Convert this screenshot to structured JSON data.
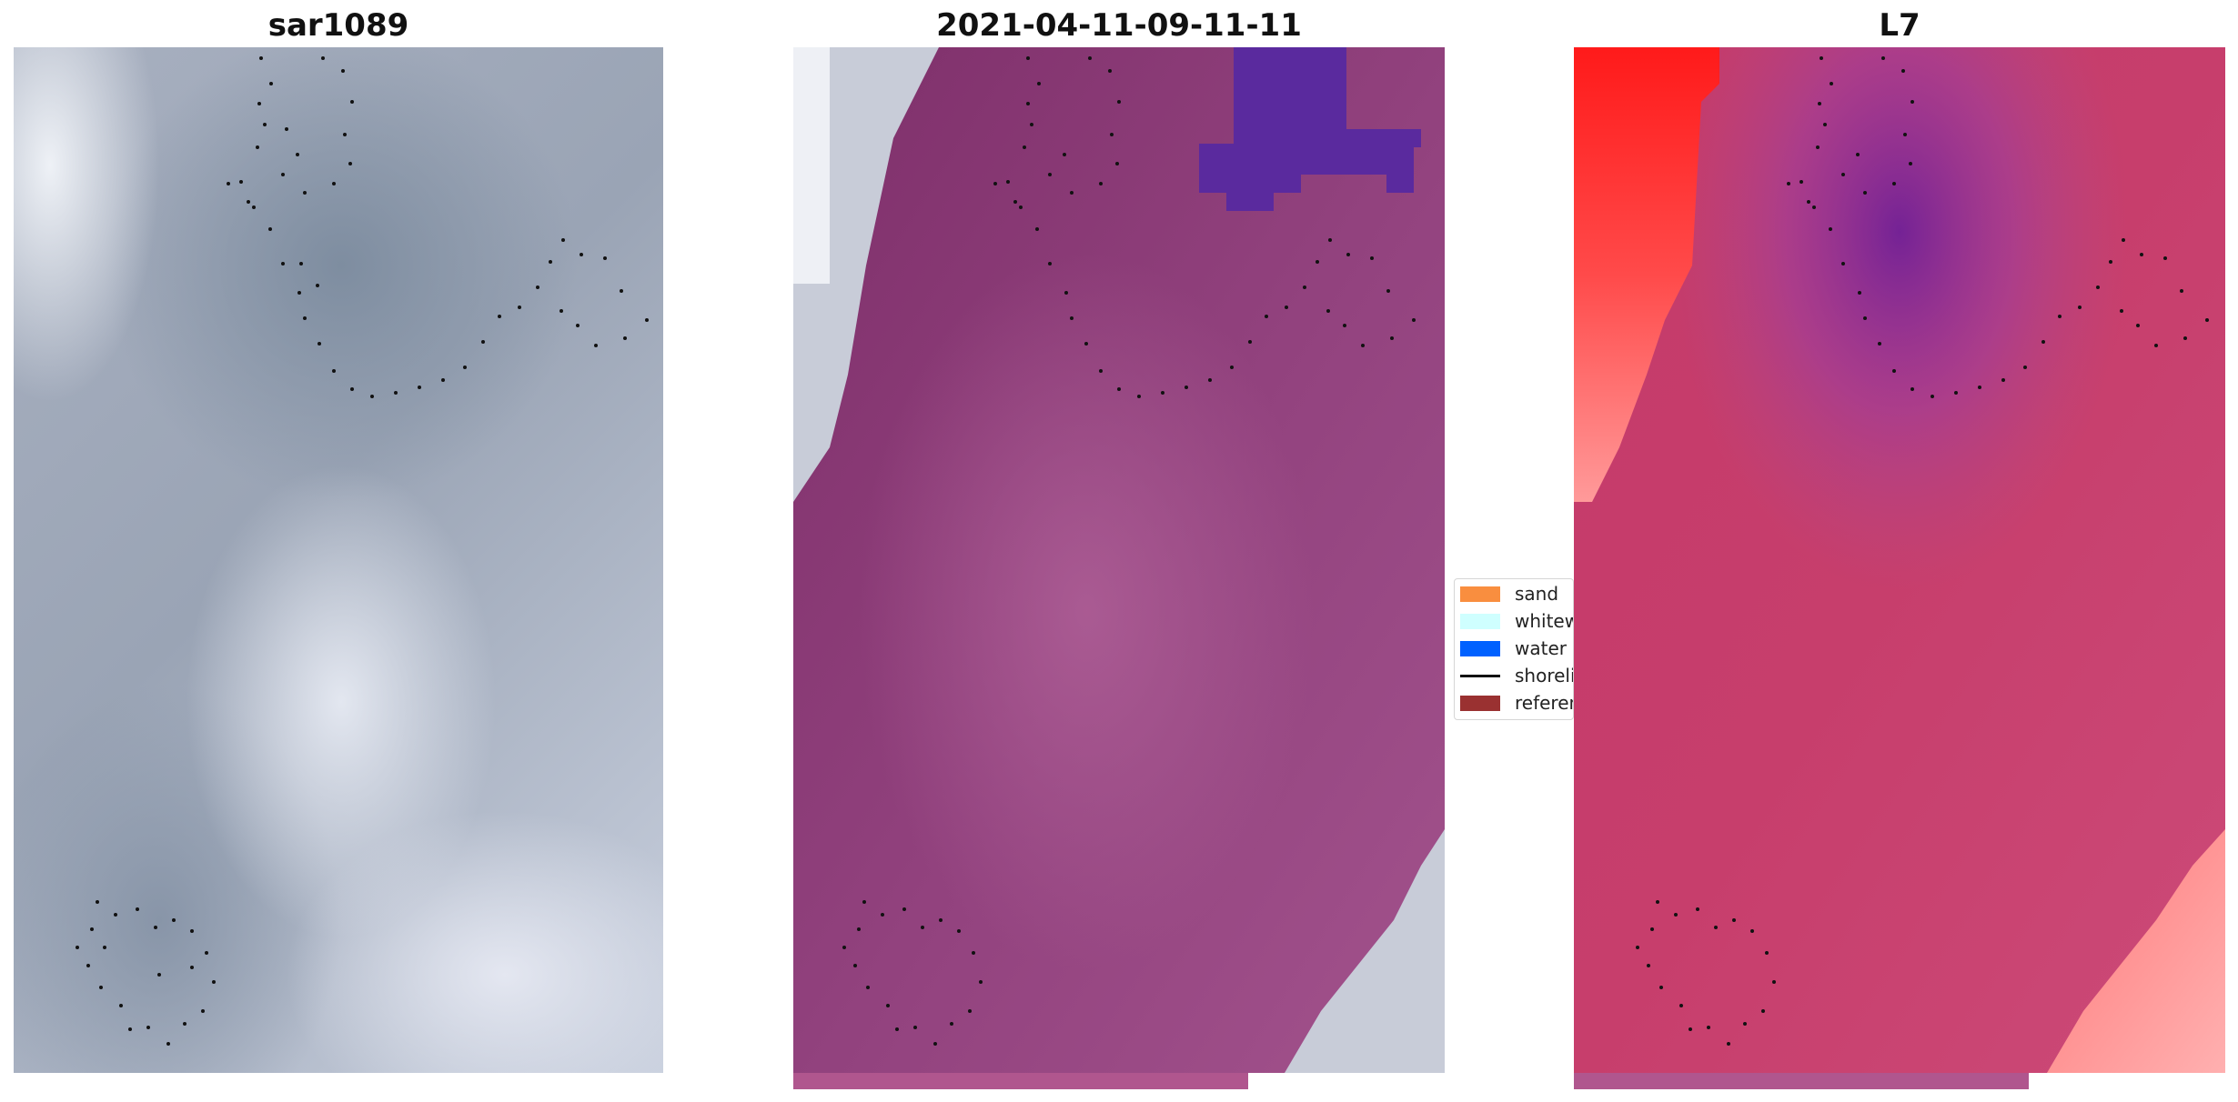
{
  "panels": [
    {
      "title": "sar1089"
    },
    {
      "title": "2021-04-11-09-11-11"
    },
    {
      "title": "L7"
    }
  ],
  "legend": [
    {
      "label": "sand",
      "color": "#f98e3f",
      "kind": "patch"
    },
    {
      "label": "whitewater",
      "color": "#cfffff",
      "kind": "patch"
    },
    {
      "label": "water",
      "color": "#0061ff",
      "kind": "patch"
    },
    {
      "label": "shoreline",
      "color": "#111111",
      "kind": "line"
    },
    {
      "label": "reference",
      "color": "#9a3131",
      "kind": "patch"
    }
  ],
  "colors": {
    "classified_overlay": "#8a3a78",
    "water_overlay": "#5a2a9e",
    "l7_base": "#c93a6a",
    "l7_red": "#ff1a1a"
  }
}
